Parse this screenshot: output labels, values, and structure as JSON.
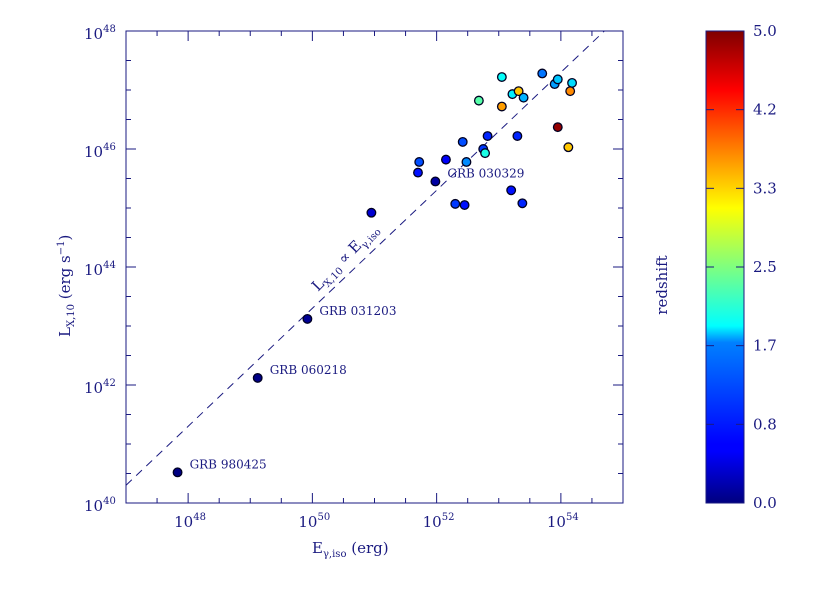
{
  "chart_data": [
    {
      "type": "scatter",
      "xscale": "log",
      "yscale": "log",
      "xlim_log10": [
        47,
        55
      ],
      "ylim_log10": [
        40,
        48
      ],
      "xticks": [
        {
          "base": "10",
          "exp": "48"
        },
        {
          "base": "10",
          "exp": "50"
        },
        {
          "base": "10",
          "exp": "52"
        },
        {
          "base": "10",
          "exp": "54"
        }
      ],
      "yticks": [
        {
          "base": "10",
          "exp": "40"
        },
        {
          "base": "10",
          "exp": "42"
        },
        {
          "base": "10",
          "exp": "44"
        },
        {
          "base": "10",
          "exp": "46"
        },
        {
          "base": "10",
          "exp": "48"
        }
      ],
      "xlabel": {
        "main": "E",
        "sub": "γ,iso",
        "rest": " (erg)"
      },
      "ylabel": {
        "main": "L",
        "sub": "X,10",
        "rest": " (erg s",
        "sup": "−1",
        "end": ")"
      },
      "relation_label": {
        "main": "L",
        "sub1": "X,10",
        "mid": " ∝ E",
        "sub2": "γ,iso"
      },
      "relation_line": {
        "x_log10": [
          47.0,
          54.7
        ],
        "y_log10": [
          40.3,
          48.0
        ],
        "style": "dashed"
      },
      "labeled_points": [
        {
          "name": "GRB 980425",
          "x_log10": 47.83,
          "y_log10": 40.52
        },
        {
          "name": "GRB 060218",
          "x_log10": 49.12,
          "y_log10": 42.12
        },
        {
          "name": "GRB 031203",
          "x_log10": 49.92,
          "y_log10": 43.12
        },
        {
          "name": "GRB 030329",
          "x_log10": 51.98,
          "y_log10": 45.45
        }
      ],
      "points": [
        {
          "x_log10": 47.83,
          "y_log10": 40.52,
          "z": 0.01
        },
        {
          "x_log10": 49.12,
          "y_log10": 42.12,
          "z": 0.03
        },
        {
          "x_log10": 49.92,
          "y_log10": 43.12,
          "z": 0.1
        },
        {
          "x_log10": 50.95,
          "y_log10": 44.92,
          "z": 0.4
        },
        {
          "x_log10": 51.98,
          "y_log10": 45.45,
          "z": 0.17
        },
        {
          "x_log10": 51.7,
          "y_log10": 45.6,
          "z": 0.7
        },
        {
          "x_log10": 51.72,
          "y_log10": 45.78,
          "z": 1.0
        },
        {
          "x_log10": 52.15,
          "y_log10": 45.82,
          "z": 0.6
        },
        {
          "x_log10": 52.48,
          "y_log10": 45.78,
          "z": 1.3
        },
        {
          "x_log10": 52.42,
          "y_log10": 46.12,
          "z": 1.0
        },
        {
          "x_log10": 52.75,
          "y_log10": 46.0,
          "z": 0.9
        },
        {
          "x_log10": 52.82,
          "y_log10": 46.22,
          "z": 0.8
        },
        {
          "x_log10": 52.78,
          "y_log10": 45.93,
          "z": 2.0
        },
        {
          "x_log10": 52.3,
          "y_log10": 45.07,
          "z": 0.9
        },
        {
          "x_log10": 52.45,
          "y_log10": 45.05,
          "z": 0.7
        },
        {
          "x_log10": 53.2,
          "y_log10": 45.3,
          "z": 0.7
        },
        {
          "x_log10": 53.38,
          "y_log10": 45.08,
          "z": 0.8
        },
        {
          "x_log10": 53.3,
          "y_log10": 46.22,
          "z": 0.8
        },
        {
          "x_log10": 52.68,
          "y_log10": 46.82,
          "z": 2.3
        },
        {
          "x_log10": 53.05,
          "y_log10": 46.72,
          "z": 3.6
        },
        {
          "x_log10": 53.05,
          "y_log10": 47.22,
          "z": 1.9
        },
        {
          "x_log10": 53.22,
          "y_log10": 46.93,
          "z": 1.8
        },
        {
          "x_log10": 53.32,
          "y_log10": 46.98,
          "z": 3.4
        },
        {
          "x_log10": 53.4,
          "y_log10": 46.87,
          "z": 1.5
        },
        {
          "x_log10": 53.7,
          "y_log10": 47.28,
          "z": 1.2
        },
        {
          "x_log10": 53.9,
          "y_log10": 47.1,
          "z": 1.4
        },
        {
          "x_log10": 53.95,
          "y_log10": 47.18,
          "z": 1.6
        },
        {
          "x_log10": 54.18,
          "y_log10": 47.12,
          "z": 1.7
        },
        {
          "x_log10": 54.15,
          "y_log10": 46.98,
          "z": 3.7
        },
        {
          "x_log10": 53.95,
          "y_log10": 46.37,
          "z": 4.9
        },
        {
          "x_log10": 54.12,
          "y_log10": 46.03,
          "z": 3.4
        }
      ]
    },
    {
      "type": "colorbar",
      "label": "redshift",
      "range": [
        0.0,
        5.0
      ],
      "ticks": [
        "0.0",
        "0.8",
        "1.7",
        "2.5",
        "3.3",
        "4.2",
        "5.0"
      ],
      "colormap": "jet"
    }
  ]
}
